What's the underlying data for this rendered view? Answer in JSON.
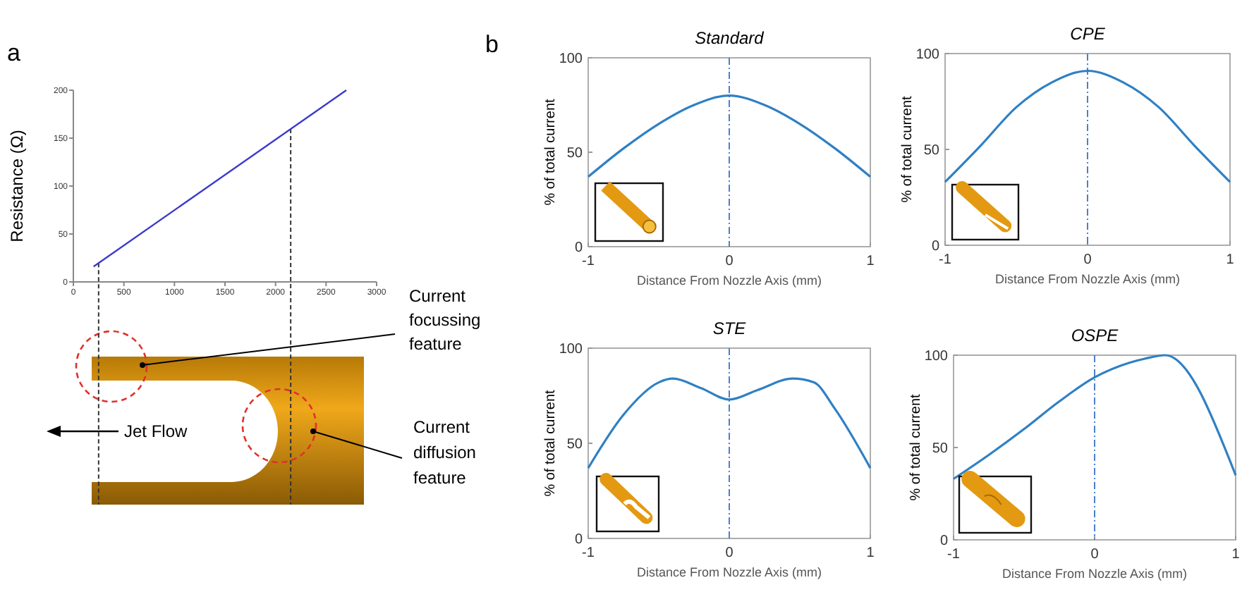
{
  "chart_data": [
    {
      "type": "line",
      "ylabel": "Resistance (Ω)",
      "xlim": [
        0,
        3000
      ],
      "xticks": [
        0,
        500,
        1000,
        1500,
        2000,
        2500,
        3000
      ],
      "ylim": [
        0,
        200
      ],
      "yticks": [
        0,
        50,
        100,
        150,
        200
      ],
      "grid": false,
      "marker": "none",
      "series": [
        {
          "color": "#3a3acc",
          "x": [
            200,
            2700
          ],
          "values": [
            16,
            200
          ]
        }
      ],
      "ref_lines": [
        {
          "axis": "x",
          "value": 250,
          "color": "#333333",
          "line_style": "dashed"
        },
        {
          "axis": "x",
          "value": 2150,
          "color": "#333333",
          "line_style": "dashed"
        }
      ],
      "annotations": [
        "a",
        "Jet Flow",
        "Current focussing feature",
        "Current diffusion feature"
      ]
    },
    {
      "type": "line",
      "title": "Standard",
      "xlabel": "Distance From Nozzle Axis (mm)",
      "ylabel": "% of total current",
      "xlim": [
        -1,
        1
      ],
      "xticks": [
        -1,
        0,
        1
      ],
      "ylim": [
        0,
        100
      ],
      "yticks": [
        0,
        50,
        100
      ],
      "grid": false,
      "marker": "none",
      "series": [
        {
          "color": "#2f80c4",
          "x": [
            -1,
            -0.75,
            -0.5,
            -0.25,
            0,
            0.25,
            0.5,
            0.75,
            1
          ],
          "values": [
            37,
            52,
            65,
            75,
            80,
            75,
            65,
            52,
            37
          ]
        }
      ],
      "ref_lines": [
        {
          "axis": "x",
          "value": 0,
          "color": "#4a7fd0",
          "line_style": "dashed"
        }
      ],
      "annotations": [
        "b"
      ]
    },
    {
      "type": "line",
      "title": "CPE",
      "xlabel": "Distance From Nozzle Axis (mm)",
      "ylabel": "% of total current",
      "xlim": [
        -1,
        1
      ],
      "xticks": [
        -1,
        0,
        1
      ],
      "ylim": [
        0,
        100
      ],
      "yticks": [
        0,
        50,
        100
      ],
      "grid": false,
      "marker": "none",
      "series": [
        {
          "color": "#2f80c4",
          "x": [
            -1,
            -0.75,
            -0.5,
            -0.25,
            0,
            0.25,
            0.5,
            0.75,
            1
          ],
          "values": [
            33,
            52,
            72,
            85,
            91,
            85,
            72,
            52,
            33
          ]
        }
      ],
      "ref_lines": [
        {
          "axis": "x",
          "value": 0,
          "color": "#4a7fd0",
          "line_style": "dashed"
        }
      ]
    },
    {
      "type": "line",
      "title": "STE",
      "xlabel": "Distance From Nozzle Axis (mm)",
      "ylabel": "% of total current",
      "xlim": [
        -1,
        1
      ],
      "xticks": [
        -1,
        0,
        1
      ],
      "ylim": [
        0,
        100
      ],
      "yticks": [
        0,
        50,
        100
      ],
      "grid": false,
      "marker": "none",
      "series": [
        {
          "color": "#2f80c4",
          "x": [
            -1,
            -0.75,
            -0.5,
            -0.4,
            -0.2,
            0,
            0.2,
            0.45,
            0.6,
            0.75,
            1
          ],
          "values": [
            37,
            65,
            82,
            84,
            79,
            73,
            78,
            84,
            82,
            68,
            37
          ]
        }
      ],
      "ref_lines": [
        {
          "axis": "x",
          "value": 0,
          "color": "#4a7fd0",
          "line_style": "dashed"
        }
      ]
    },
    {
      "type": "line",
      "title": "OSPE",
      "xlabel": "Distance From Nozzle Axis (mm)",
      "ylabel": "% of total current",
      "xlim": [
        -1,
        1
      ],
      "xticks": [
        -1,
        0,
        1
      ],
      "ylim": [
        0,
        100
      ],
      "yticks": [
        0,
        50,
        100
      ],
      "grid": false,
      "marker": "none",
      "series": [
        {
          "color": "#2f80c4",
          "x": [
            -1,
            -0.75,
            -0.5,
            -0.25,
            0,
            0.25,
            0.35,
            0.5,
            1
          ],
          "values": [
            33,
            46,
            60,
            75,
            88,
            96,
            98,
            100,
            35
          ]
        }
      ],
      "ref_lines": [
        {
          "axis": "x",
          "value": 0,
          "color": "#4a7fd0",
          "line_style": "dashed"
        }
      ]
    }
  ]
}
